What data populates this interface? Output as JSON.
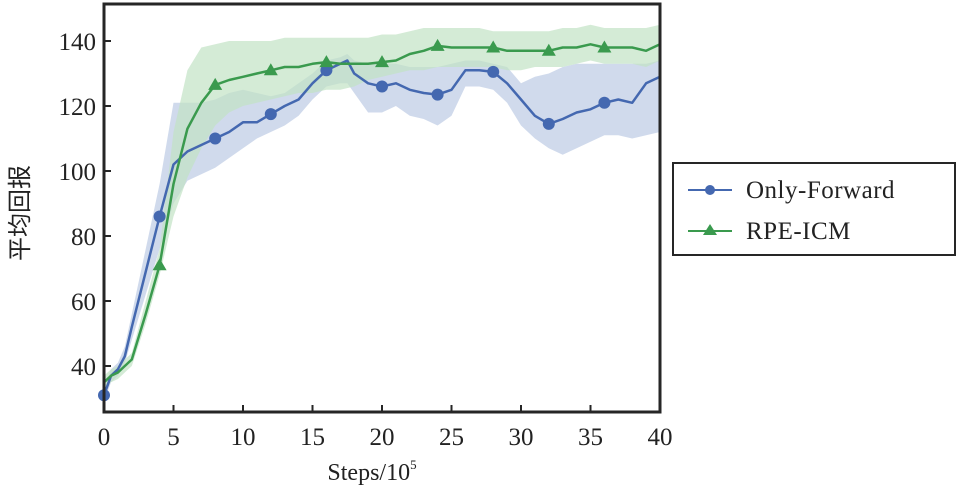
{
  "chart_data": {
    "type": "line",
    "title": "",
    "xlabel": "Steps/10",
    "xlabel_superscript": "5",
    "ylabel": "平均回报",
    "xlim": [
      0,
      40
    ],
    "ylim": [
      25,
      152
    ],
    "xticks": [
      0,
      5,
      10,
      15,
      20,
      25,
      30,
      35,
      40
    ],
    "yticks": [
      40,
      60,
      80,
      100,
      120,
      140
    ],
    "grid": false,
    "legend_position": "right-outside",
    "series": [
      {
        "name": "Only-Forward",
        "color": "#4468b0",
        "band_color": "#b7c6e2",
        "marker": "circle",
        "x": [
          0,
          0.5,
          1,
          1.5,
          2,
          3,
          4,
          5,
          6,
          7,
          8,
          9,
          10,
          11,
          12,
          13,
          14,
          15,
          16,
          17,
          17.5,
          18,
          19,
          20,
          21,
          22,
          23,
          24,
          25,
          26,
          27,
          28,
          29,
          30,
          31,
          32,
          33,
          34,
          35,
          36,
          37,
          38,
          39,
          40
        ],
        "y": [
          31,
          37,
          39,
          43,
          52,
          69,
          86,
          102,
          106,
          108,
          110,
          112,
          115,
          115,
          117.5,
          120,
          122,
          127,
          131,
          133,
          134,
          130,
          127,
          126,
          127,
          125,
          124,
          123.5,
          125,
          131,
          131,
          130.5,
          127,
          122,
          117,
          114.5,
          116,
          118,
          119,
          121,
          122,
          121,
          127,
          129
        ],
        "lower": [
          29,
          35,
          37,
          41,
          48,
          62,
          76,
          90,
          97,
          99,
          101,
          104,
          107,
          110,
          112,
          114,
          117,
          122,
          126,
          127,
          127,
          124,
          118,
          118,
          120,
          117,
          116,
          114,
          117,
          126,
          126,
          125,
          121,
          114,
          110,
          107,
          105,
          107,
          109,
          111,
          111,
          110,
          111,
          112
        ],
        "upper": [
          33,
          39,
          41,
          46,
          56,
          76,
          96,
          121,
          121,
          121,
          122,
          124,
          125,
          124,
          123,
          124,
          127,
          130,
          134,
          135,
          136,
          134,
          133,
          133,
          133,
          132,
          132,
          132,
          133,
          134,
          134,
          133,
          132,
          127,
          129,
          130,
          132,
          133,
          133,
          133,
          133,
          133,
          133,
          134
        ],
        "markers_x": [
          0,
          4,
          8,
          12,
          16,
          20,
          24,
          28,
          32,
          36
        ],
        "markers_y": [
          31,
          86,
          110,
          117.5,
          131,
          126,
          123.5,
          130.5,
          114.5,
          121
        ]
      },
      {
        "name": "RPE-ICM",
        "color": "#3a9a4e",
        "band_color": "#c2e3c5",
        "marker": "triangle",
        "x": [
          0,
          0.5,
          1,
          1.5,
          2,
          3,
          4,
          5,
          6,
          7,
          8,
          9,
          10,
          11,
          12,
          13,
          14,
          15,
          16,
          17,
          18,
          19,
          20,
          21,
          22,
          23,
          24,
          25,
          26,
          27,
          28,
          29,
          30,
          31,
          32,
          33,
          34,
          35,
          36,
          37,
          38,
          39,
          40
        ],
        "y": [
          35,
          37,
          38,
          40,
          42,
          56,
          71,
          96,
          113,
          121,
          126.5,
          128,
          129,
          130,
          131,
          132,
          132,
          133,
          133.5,
          133,
          133,
          133,
          133.5,
          134,
          136,
          137,
          138.5,
          138,
          138,
          138,
          138,
          137,
          137,
          137,
          137,
          138,
          138,
          139,
          138,
          138,
          138,
          137,
          139
        ],
        "lower": [
          33,
          35,
          36,
          38,
          40,
          53,
          68,
          86,
          98,
          107,
          114,
          118,
          120,
          121,
          122,
          123,
          124,
          124,
          125,
          125,
          126,
          128,
          129,
          130,
          131,
          131,
          132,
          132,
          132,
          132,
          132,
          131,
          131,
          132,
          132,
          132,
          133,
          134,
          133,
          133,
          133,
          132,
          134
        ],
        "upper": [
          37,
          39,
          40,
          42,
          44,
          60,
          76,
          112,
          131,
          138,
          139,
          140,
          140,
          140,
          140,
          141,
          141,
          141,
          141,
          141,
          141,
          141,
          142,
          142,
          143,
          144,
          144,
          144,
          144,
          144,
          143,
          143,
          143,
          143,
          143,
          144,
          144,
          145,
          144,
          144,
          144,
          144,
          145
        ],
        "markers_x": [
          4,
          8,
          12,
          16,
          20,
          24,
          28,
          32,
          36
        ],
        "markers_y": [
          71,
          126.5,
          131,
          133.5,
          133.5,
          138.5,
          138,
          137,
          138
        ]
      }
    ]
  }
}
